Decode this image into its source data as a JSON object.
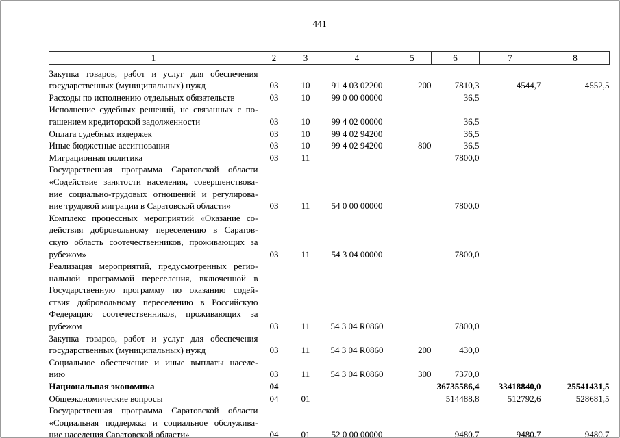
{
  "page": {
    "number": "441"
  },
  "colors": {
    "text": "#000000",
    "table_border": "#2f2f2f",
    "frame_border": "#9b9b9b",
    "background": "#ffffff"
  },
  "table": {
    "header": [
      "1",
      "2",
      "3",
      "4",
      "5",
      "6",
      "7",
      "8"
    ],
    "rows": [
      {
        "name_lines": [
          "Закупка товаров, работ и услуг для обеспечения",
          "государственных (муниципальных) нужд"
        ],
        "bold": false,
        "c2": "03",
        "c3": "10",
        "c4": "91 4 03 02200",
        "c5": "200",
        "c6": "7810,3",
        "c7": "4544,7",
        "c8": "4552,5"
      },
      {
        "name_lines": [
          "Расходы по исполнению отдельных обязательств"
        ],
        "bold": false,
        "c2": "03",
        "c3": "10",
        "c4": "99 0 00 00000",
        "c5": "",
        "c6": "36,5",
        "c7": "",
        "c8": ""
      },
      {
        "name_lines": [
          "Исполнение судебных решений, не связанных с по-",
          "гашением кредиторской задолженности"
        ],
        "bold": false,
        "c2": "03",
        "c3": "10",
        "c4": "99 4 02 00000",
        "c5": "",
        "c6": "36,5",
        "c7": "",
        "c8": ""
      },
      {
        "name_lines": [
          "Оплата судебных издержек"
        ],
        "bold": false,
        "c2": "03",
        "c3": "10",
        "c4": "99 4 02 94200",
        "c5": "",
        "c6": "36,5",
        "c7": "",
        "c8": ""
      },
      {
        "name_lines": [
          "Иные бюджетные ассигнования"
        ],
        "bold": false,
        "c2": "03",
        "c3": "10",
        "c4": "99 4 02 94200",
        "c5": "800",
        "c6": "36,5",
        "c7": "",
        "c8": ""
      },
      {
        "name_lines": [
          "Миграционная политика"
        ],
        "bold": false,
        "c2": "03",
        "c3": "11",
        "c4": "",
        "c5": "",
        "c6": "7800,0",
        "c7": "",
        "c8": ""
      },
      {
        "name_lines": [
          "Государственная программа Саратовской области",
          "«Содействие занятости населения, совершенствова-",
          "ние социально-трудовых отношений и регулирова-",
          "ние трудовой миграции в Саратовской области»"
        ],
        "bold": false,
        "c2": "03",
        "c3": "11",
        "c4": "54 0 00 00000",
        "c5": "",
        "c6": "7800,0",
        "c7": "",
        "c8": ""
      },
      {
        "name_lines": [
          "Комплекс процессных мероприятий «Оказание со-",
          "действия добровольному переселению в Саратов-",
          "скую область соотечественников, проживающих за",
          "рубежом»"
        ],
        "bold": false,
        "c2": "03",
        "c3": "11",
        "c4": "54 3 04 00000",
        "c5": "",
        "c6": "7800,0",
        "c7": "",
        "c8": ""
      },
      {
        "name_lines": [
          "Реализация мероприятий, предусмотренных регио-",
          "нальной программой переселения, включенной в",
          "Государственную программу по оказанию содей-",
          "ствия добровольному переселению в Российскую",
          "Федерацию соотечественников, проживающих за",
          "рубежом"
        ],
        "bold": false,
        "c2": "03",
        "c3": "11",
        "c4": "54 3 04 R0860",
        "c5": "",
        "c6": "7800,0",
        "c7": "",
        "c8": ""
      },
      {
        "name_lines": [
          "Закупка товаров, работ и услуг для обеспечения",
          "государственных (муниципальных) нужд"
        ],
        "bold": false,
        "c2": "03",
        "c3": "11",
        "c4": "54 3 04 R0860",
        "c5": "200",
        "c6": "430,0",
        "c7": "",
        "c8": ""
      },
      {
        "name_lines": [
          "Социальное обеспечение и иные выплаты населе-",
          "нию"
        ],
        "bold": false,
        "c2": "03",
        "c3": "11",
        "c4": "54 3 04 R0860",
        "c5": "300",
        "c6": "7370,0",
        "c7": "",
        "c8": ""
      },
      {
        "name_lines": [
          "Национальная экономика"
        ],
        "bold": true,
        "c2": "04",
        "c3": "",
        "c4": "",
        "c5": "",
        "c6": "36735586,4",
        "c7": "33418840,0",
        "c8": "25541431,5"
      },
      {
        "name_lines": [
          "Общеэкономические вопросы"
        ],
        "bold": false,
        "c2": "04",
        "c3": "01",
        "c4": "",
        "c5": "",
        "c6": "514488,8",
        "c7": "512792,6",
        "c8": "528681,5"
      },
      {
        "name_lines": [
          "Государственная программа Саратовской области",
          "«Социальная поддержка и социальное обслужива-",
          "ние населения Саратовской области»"
        ],
        "bold": false,
        "c2": "04",
        "c3": "01",
        "c4": "52 0 00 00000",
        "c5": "",
        "c6": "9480,7",
        "c7": "9480,7",
        "c8": "9480,7"
      }
    ]
  }
}
